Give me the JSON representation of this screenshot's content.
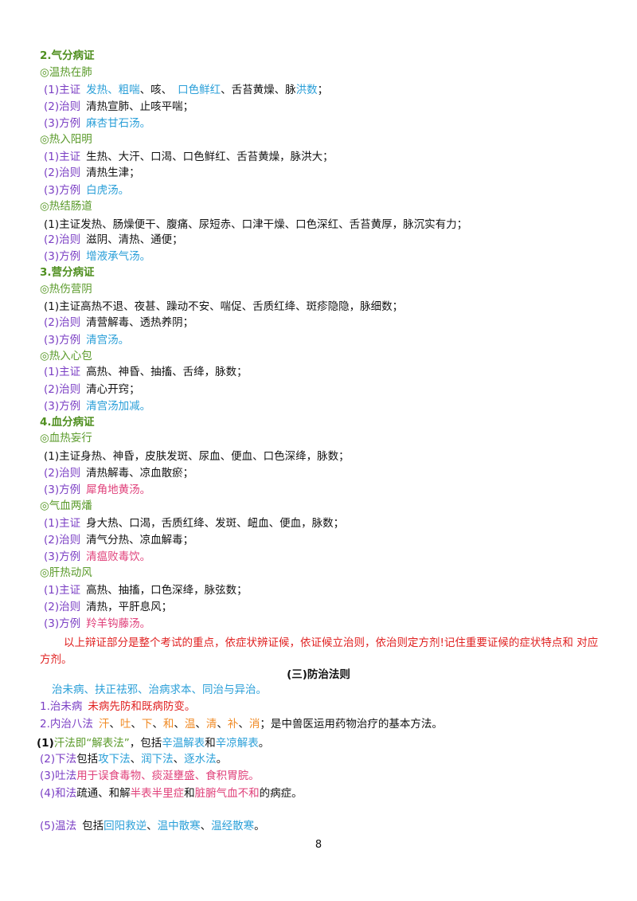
{
  "body": [
    [
      "2.气分病证"
    ],
    [
      "◎温热在肺"
    ],
    [
      "(1)主证",
      "发热、粗喘",
      "、咳、",
      "口色鲜红",
      "、舌苔黄燥、脉",
      "洪数",
      "；"
    ],
    [
      "(2)治则",
      "清热宣肺、止咳平喘；"
    ],
    [
      "(3)方例",
      "麻杏甘石汤。"
    ],
    [
      "◎热入阳明"
    ],
    [
      "(1)主证",
      "生热、大汗、口渴、口色鲜红、舌苔黄燥，脉洪大；"
    ],
    [
      "(2)治则",
      "清热生津；"
    ],
    [
      "(3)方例",
      "白虎汤。"
    ],
    [
      "◎热结肠道"
    ],
    [
      "(1)主证发热、肠燥便干、腹痛、尿短赤、口津干燥、口色深红、舌苔黄厚，脉沉实有力；"
    ],
    [
      "(2)治则",
      "滋阴、清热、通便；"
    ],
    [
      "(3)方例",
      "增液承气汤。"
    ],
    [
      "3.营分病证"
    ],
    [
      "◎热伤营阴"
    ],
    [
      "(1)主证高热不退、夜甚、躁动不安、喘促、舌质红绛、斑疹隐隐，脉细数；"
    ],
    [
      "(2)治则",
      "清营解毒、透热养阴；"
    ],
    [
      "(3)方例",
      "清宫汤。"
    ],
    [
      "◎热入心包"
    ],
    [
      "(1)主证",
      "高热、神昏、抽搐、舌绛，脉数；"
    ],
    [
      "(2)治则",
      "清心开窍；"
    ],
    [
      "(3)方例",
      "清宫汤加减。"
    ],
    [
      "4.血分病证"
    ],
    [
      "◎血热妄行"
    ],
    [
      "(1)主证身热、神昏，皮肤发斑、尿血、便血、口色深绛，脉数；"
    ],
    [
      "(2)治则",
      "清热解毒、凉血散瘀；"
    ],
    [
      "(3)方例",
      "犀角地黄汤。"
    ],
    [
      "◎气血两燔"
    ],
    [
      "(1)主证",
      "身大热、口渴，舌质红绛、发斑、衄血、便血，脉数；"
    ],
    [
      "(2)治则",
      "清气分热、凉血解毒；"
    ],
    [
      "(3)方例",
      "清瘟败毒饮。"
    ],
    [
      "◎肝热动风"
    ],
    [
      "(1)主证",
      "高热、抽搐，口色深绛，脉弦数；"
    ],
    [
      "(2)治则",
      "清热，平肝息风；"
    ],
    [
      "(3)方例",
      "羚羊钩藤汤。"
    ]
  ],
  "note": "以上辩证部分是整个考试的重点，依症状辨证候，依证候立治则，依治则定方剂!记住重要证候的症状特点和 对应方剂。",
  "heading": "(三)防治法则",
  "treatment": [
    [
      "治未病、扶正祛邪、治病求本、同治与异治。"
    ],
    [
      "1.治未病",
      "未病先防和既病防变。"
    ],
    [
      "2.内治八法",
      "汗",
      "、",
      "吐",
      "、",
      "下",
      "、",
      "和",
      "、",
      "温",
      "、",
      "清",
      "、",
      "补",
      "、",
      "消",
      "；是中兽医运用药物治疗的基本方法。"
    ],
    [
      "(1)",
      "汗法即“解表法”",
      "，包括",
      "辛温解表",
      "和",
      "辛凉解表",
      "。"
    ],
    [
      "(2)下法",
      "包括",
      "攻下法",
      "、",
      "润下法",
      "、",
      "逐水法",
      "。"
    ],
    [
      "(3)吐法",
      "用于误食毒物、痰涎壅盛、食积胃脘。"
    ],
    [
      "(4)和法",
      "疏通、和解",
      "半表半里症",
      "和",
      "脏腑气血不和",
      "的病症。"
    ],
    [
      "(5)温法",
      "包括",
      "回阳救逆",
      "、",
      "温中散寒",
      "、",
      "温经散寒",
      "。"
    ]
  ],
  "page_number": "8"
}
